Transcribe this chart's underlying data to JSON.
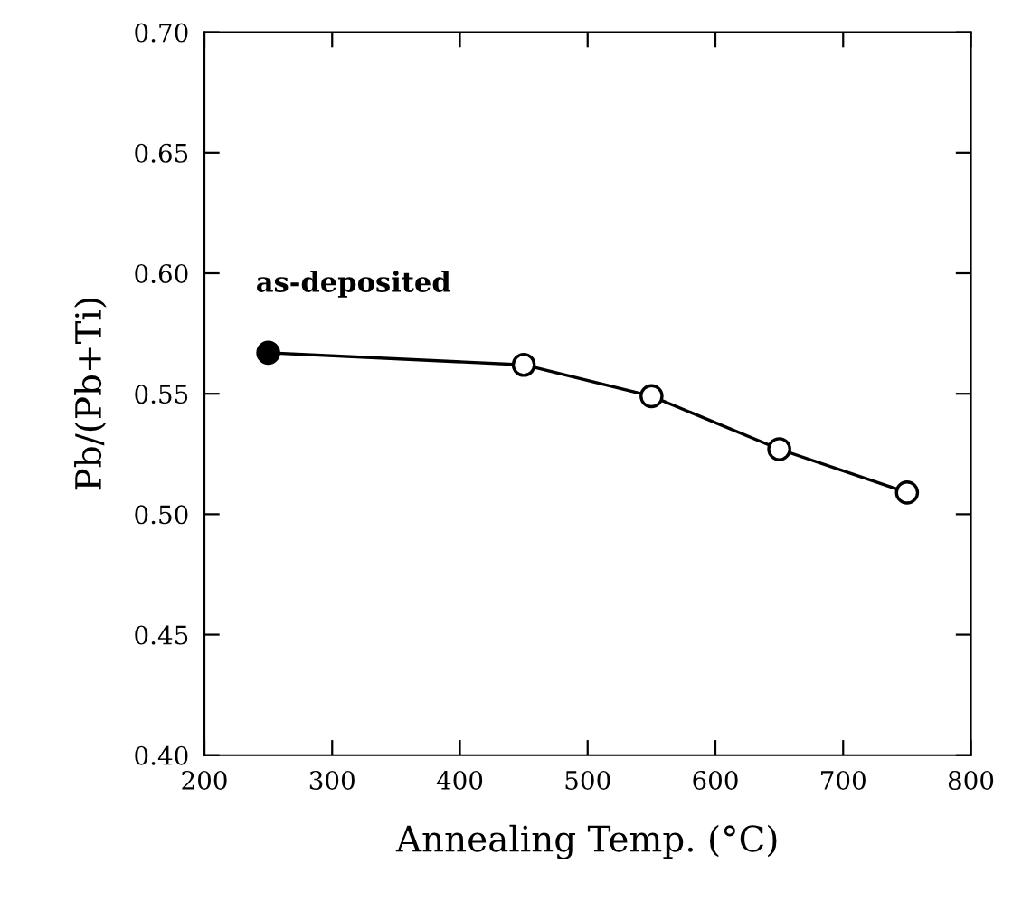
{
  "chart_data": {
    "type": "line",
    "xlabel": "Annealing Temp. (°C)",
    "ylabel": "Pb/(Pb+Ti)",
    "x": [
      250,
      450,
      550,
      650,
      750
    ],
    "series": [
      {
        "color": "#000000",
        "colors": [
          "#000000",
          "#ffffff",
          "#ffffff",
          "#ffffff",
          "#ffffff"
        ],
        "values": [
          0.567,
          0.562,
          0.549,
          0.527,
          0.509
        ]
      }
    ],
    "annotations": [
      {
        "text": "as-deposited",
        "x": 250,
        "y": 0.567
      }
    ],
    "xlim": [
      200,
      800
    ],
    "xticks": [
      200,
      300,
      400,
      500,
      600,
      700,
      800
    ],
    "ylim": [
      0.4,
      0.7
    ],
    "yticks": [
      {
        "value": 0.4,
        "label": "0.40"
      },
      {
        "value": 0.45,
        "label": "0.45"
      },
      {
        "value": 0.5,
        "label": "0.50"
      },
      {
        "value": 0.55,
        "label": "0.55"
      },
      {
        "value": 0.6,
        "label": "0.60"
      },
      {
        "value": 0.65,
        "label": "0.65"
      },
      {
        "value": 0.7,
        "label": "0.70"
      }
    ],
    "marker": "circle",
    "line_style": "solid",
    "grid": false
  }
}
